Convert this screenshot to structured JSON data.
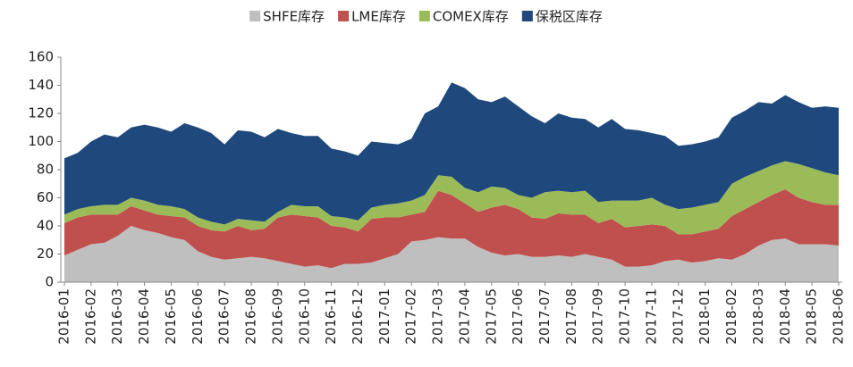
{
  "chart_data": {
    "type": "stacked_area",
    "categories": [
      "2016-01",
      null,
      "2016-02",
      null,
      "2016-03",
      null,
      "2016-04",
      null,
      "2016-05",
      null,
      "2016-06",
      null,
      "2016-07",
      null,
      "2016-08",
      null,
      "2016-09",
      null,
      "2016-10",
      null,
      "2016-11",
      null,
      "2016-12",
      null,
      "2017-01",
      null,
      "2017-02",
      null,
      "2017-03",
      null,
      "2017-04",
      null,
      "2017-05",
      null,
      "2017-06",
      null,
      "2017-07",
      null,
      "2017-08",
      null,
      "2017-09",
      null,
      "2017-10",
      null,
      "2017-11",
      null,
      "2017-12",
      null,
      "2018-01",
      null,
      "2018-02",
      null,
      "2018-03",
      null,
      "2018-04",
      null,
      "2018-05",
      null,
      "2018-06"
    ],
    "series": [
      {
        "name": "SHFE库存",
        "color": "#bfbfbf",
        "values": [
          19,
          23,
          27,
          28,
          33,
          40,
          37,
          35,
          32,
          30,
          22,
          18,
          16,
          17,
          18,
          17,
          15,
          13,
          11,
          12,
          10,
          13,
          13,
          14,
          17,
          20,
          29,
          30,
          32,
          31,
          31,
          25,
          21,
          19,
          20,
          18,
          18,
          19,
          18,
          20,
          18,
          16,
          11,
          11,
          12,
          15,
          16,
          14,
          15,
          17,
          16,
          20,
          26,
          30,
          31,
          27,
          27,
          27,
          26
        ]
      },
      {
        "name": "LME库存",
        "color": "#c0504d",
        "values": [
          23,
          23,
          21,
          20,
          15,
          14,
          14,
          13,
          15,
          16,
          18,
          19,
          20,
          23,
          19,
          21,
          31,
          35,
          36,
          34,
          30,
          26,
          23,
          31,
          29,
          26,
          19,
          20,
          33,
          31,
          25,
          25,
          32,
          36,
          32,
          28,
          27,
          30,
          30,
          28,
          24,
          29,
          28,
          29,
          29,
          25,
          18,
          20,
          21,
          21,
          31,
          32,
          31,
          32,
          35,
          33,
          30,
          28,
          29
        ]
      },
      {
        "name": "COMEX库存",
        "color": "#9bbb59",
        "values": [
          6,
          6,
          6,
          7,
          7,
          6,
          7,
          7,
          7,
          6,
          6,
          6,
          5,
          5,
          7,
          5,
          4,
          7,
          7,
          8,
          7,
          7,
          8,
          8,
          9,
          10,
          10,
          12,
          11,
          13,
          11,
          14,
          15,
          12,
          10,
          14,
          19,
          16,
          16,
          17,
          15,
          13,
          19,
          18,
          19,
          15,
          18,
          19,
          19,
          19,
          23,
          23,
          22,
          21,
          20,
          24,
          24,
          23,
          21
        ]
      },
      {
        "name": "保税区库存",
        "color": "#1f497d",
        "values": [
          40,
          40,
          46,
          50,
          48,
          50,
          54,
          55,
          53,
          61,
          64,
          63,
          57,
          63,
          63,
          60,
          59,
          51,
          50,
          50,
          48,
          47,
          46,
          47,
          44,
          42,
          44,
          58,
          49,
          67,
          71,
          66,
          60,
          65,
          63,
          58,
          49,
          55,
          53,
          51,
          53,
          58,
          51,
          50,
          46,
          49,
          45,
          45,
          45,
          46,
          47,
          47,
          49,
          44,
          47,
          44,
          43,
          47,
          48
        ]
      }
    ],
    "ylim": [
      0,
      160
    ],
    "yticks": [
      0,
      20,
      40,
      60,
      80,
      100,
      120,
      140,
      160
    ],
    "grid": false,
    "legend": "top"
  }
}
